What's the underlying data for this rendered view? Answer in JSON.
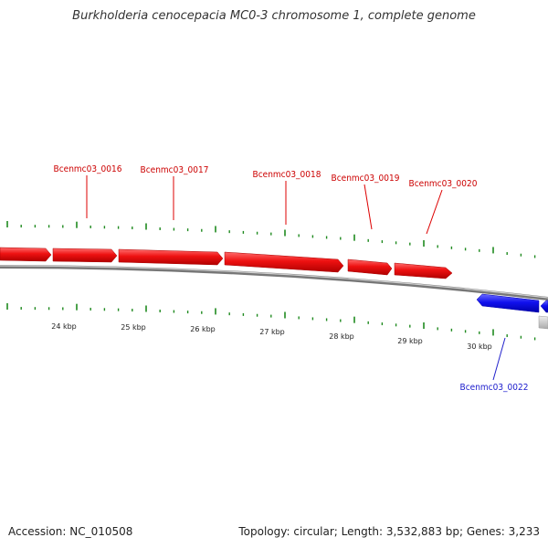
{
  "title": "Burkholderia cenocepacia MC0-3 chromosome 1, complete genome",
  "footer": {
    "accession": "Accession: NC_010508",
    "summary": "Topology: circular; Length: 3,532,883 bp; Genes: 3,233"
  },
  "colors": {
    "forward_gene": "#ee1111",
    "reverse_gene": "#1111dd",
    "tick": "#1f8a1f",
    "backbone": "#888888"
  },
  "genes_forward": [
    {
      "label": "Bcenmc03_0016"
    },
    {
      "label": "Bcenmc03_0017"
    },
    {
      "label": "Bcenmc03_0018"
    },
    {
      "label": "Bcenmc03_0019"
    },
    {
      "label": "Bcenmc03_0020"
    }
  ],
  "genes_reverse": [
    {
      "label": "Bcenmc03_0022"
    }
  ],
  "scale_labels": [
    "24 kbp",
    "25 kbp",
    "26 kbp",
    "27 kbp",
    "28 kbp",
    "29 kbp",
    "30 kbp"
  ]
}
